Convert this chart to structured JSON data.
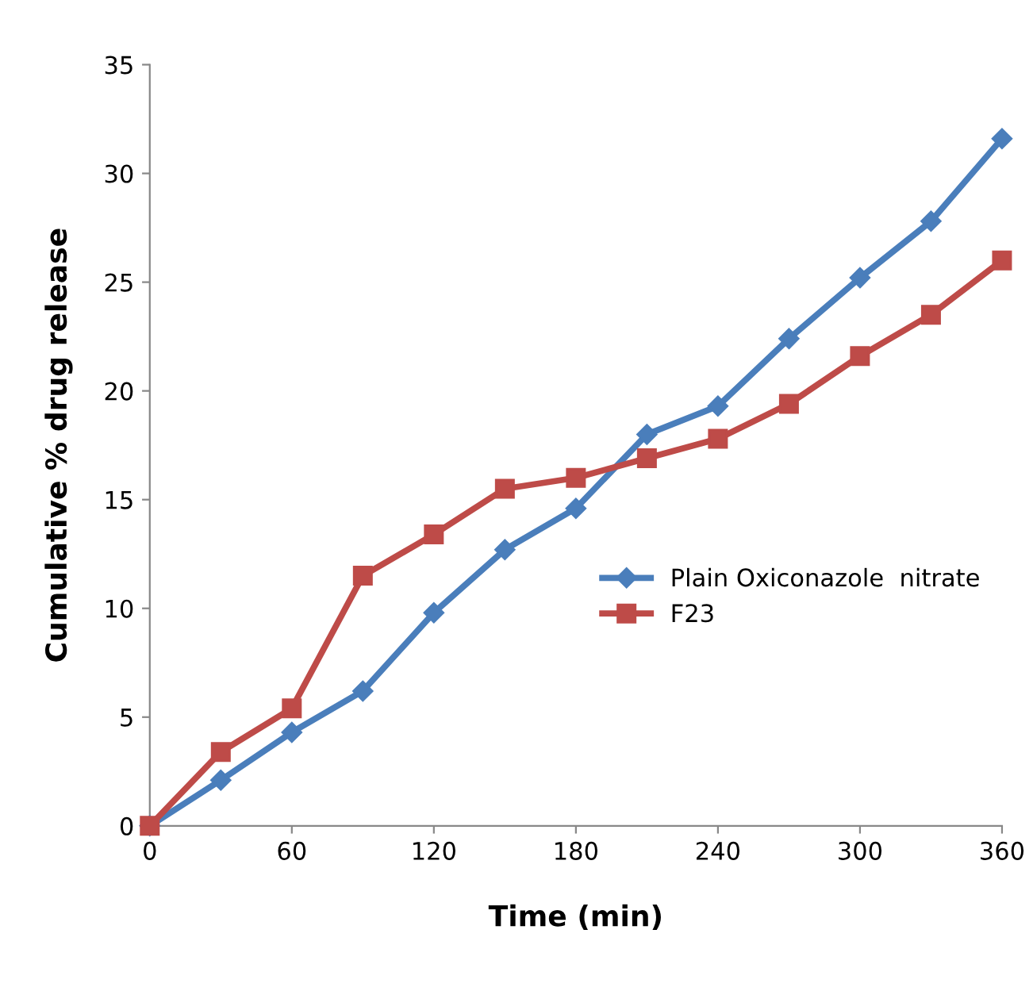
{
  "chart_data": {
    "type": "line",
    "xlabel": "Time (min)",
    "ylabel": "Cumulative % drug release",
    "x": [
      0,
      30,
      60,
      90,
      120,
      150,
      180,
      210,
      240,
      270,
      300,
      330,
      360
    ],
    "series": [
      {
        "name": "Plain Oxiconazole  nitrate",
        "color": "#4a7ebb",
        "marker": "diamond",
        "values": [
          0,
          2.1,
          4.3,
          6.2,
          9.8,
          12.7,
          14.6,
          18.0,
          19.3,
          22.4,
          25.2,
          27.8,
          31.6
        ]
      },
      {
        "name": "F23",
        "color": "#be4b48",
        "marker": "square",
        "values": [
          0,
          3.4,
          5.4,
          11.5,
          13.4,
          15.5,
          16.0,
          16.9,
          17.8,
          19.4,
          21.6,
          23.5,
          26.0
        ]
      }
    ],
    "xlim": [
      0,
      360
    ],
    "xticks": [
      0,
      60,
      120,
      180,
      240,
      300,
      360
    ],
    "ylim": [
      0,
      35
    ],
    "yticks": [
      0,
      5,
      10,
      15,
      20,
      25,
      30,
      35
    ],
    "grid": false,
    "legend": "right",
    "line_style": "solid"
  }
}
